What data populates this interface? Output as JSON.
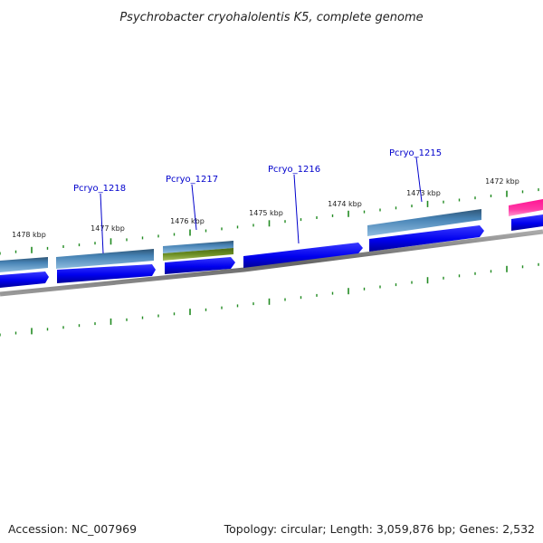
{
  "title": "Psychrobacter cryohalolentis K5, complete genome",
  "accession": "Accession: NC_007969",
  "summary": "Topology: circular; Length: 3,059,876 bp; Genes: 2,532",
  "kbp_labels": [
    "1478 kbp",
    "1477 kbp",
    "1476 kbp",
    "1475 kbp",
    "1474 kbp",
    "1473 kbp",
    "1472 kbp"
  ],
  "gene_labels": [
    "Pcryo_1218",
    "Pcryo_1217",
    "Pcryo_1216",
    "Pcryo_1215"
  ],
  "colors": {
    "cds_blue": "#0000ee",
    "gene_steel": "#4682b4",
    "gene_olive": "#6b8e23",
    "gene_pink": "#ff1493",
    "ticks": "#228b22",
    "label": "#0000cc",
    "backbone": "#888888"
  }
}
